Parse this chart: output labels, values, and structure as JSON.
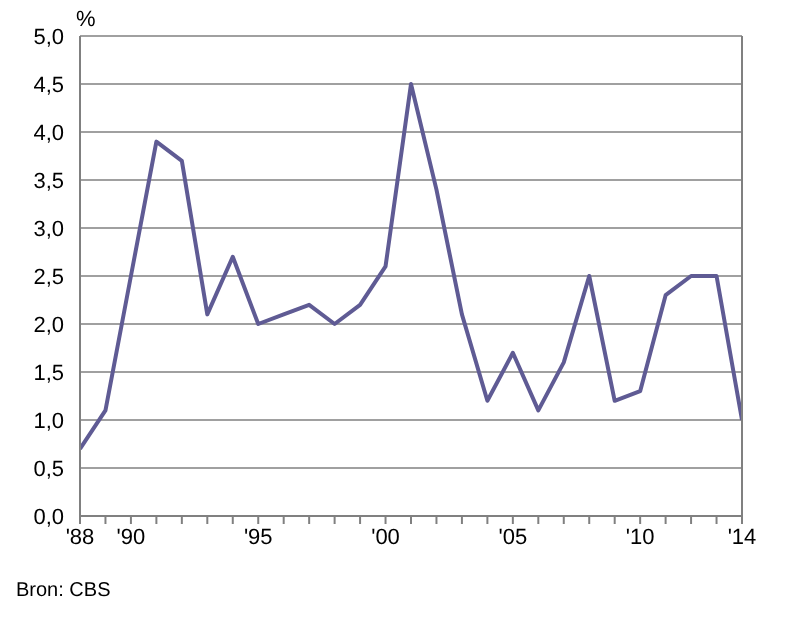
{
  "chart_data": {
    "type": "line",
    "ylabel": "%",
    "annotations": [
      "Bron: CBS"
    ],
    "x": [
      1988,
      1989,
      1990,
      1991,
      1992,
      1993,
      1994,
      1995,
      1996,
      1997,
      1998,
      1999,
      2000,
      2001,
      2002,
      2003,
      2004,
      2005,
      2006,
      2007,
      2008,
      2009,
      2010,
      2011,
      2012,
      2013,
      2014
    ],
    "series": [
      {
        "color": "#5f5b94",
        "values": [
          0.7,
          1.1,
          2.5,
          3.9,
          3.7,
          2.1,
          2.7,
          2.0,
          2.1,
          2.2,
          2.0,
          2.2,
          2.6,
          4.5,
          3.4,
          2.1,
          1.2,
          1.7,
          1.1,
          1.6,
          2.5,
          1.2,
          1.3,
          2.3,
          2.5,
          2.5,
          1.0
        ]
      }
    ],
    "xlim": [
      1988,
      2014
    ],
    "xticks": [
      {
        "value": 1988,
        "label": "'88"
      },
      {
        "value": 1989,
        "label": null
      },
      {
        "value": 1990,
        "label": "'90"
      },
      {
        "value": 1991,
        "label": null
      },
      {
        "value": 1992,
        "label": null
      },
      {
        "value": 1993,
        "label": null
      },
      {
        "value": 1994,
        "label": null
      },
      {
        "value": 1995,
        "label": "'95"
      },
      {
        "value": 1996,
        "label": null
      },
      {
        "value": 1997,
        "label": null
      },
      {
        "value": 1998,
        "label": null
      },
      {
        "value": 1999,
        "label": null
      },
      {
        "value": 2000,
        "label": "'00"
      },
      {
        "value": 2001,
        "label": null
      },
      {
        "value": 2002,
        "label": null
      },
      {
        "value": 2003,
        "label": null
      },
      {
        "value": 2004,
        "label": null
      },
      {
        "value": 2005,
        "label": "'05"
      },
      {
        "value": 2006,
        "label": null
      },
      {
        "value": 2007,
        "label": null
      },
      {
        "value": 2008,
        "label": null
      },
      {
        "value": 2009,
        "label": null
      },
      {
        "value": 2010,
        "label": "'10"
      },
      {
        "value": 2011,
        "label": null
      },
      {
        "value": 2012,
        "label": null
      },
      {
        "value": 2013,
        "label": null
      },
      {
        "value": 2014,
        "label": "'14"
      }
    ],
    "ylim": [
      0,
      5
    ],
    "yticks": [
      {
        "value": 0,
        "label": "0,0"
      },
      {
        "value": 0.5,
        "label": "0,5"
      },
      {
        "value": 1,
        "label": "1,0"
      },
      {
        "value": 1.5,
        "label": "1,5"
      },
      {
        "value": 2,
        "label": "2,0"
      },
      {
        "value": 2.5,
        "label": "2,5"
      },
      {
        "value": 3,
        "label": "3,0"
      },
      {
        "value": 3.5,
        "label": "3,5"
      },
      {
        "value": 4,
        "label": "4,0"
      },
      {
        "value": 4.5,
        "label": "4,5"
      },
      {
        "value": 5,
        "label": "5,0"
      }
    ],
    "grid": "y",
    "marker": "none",
    "line_style": "solid"
  }
}
